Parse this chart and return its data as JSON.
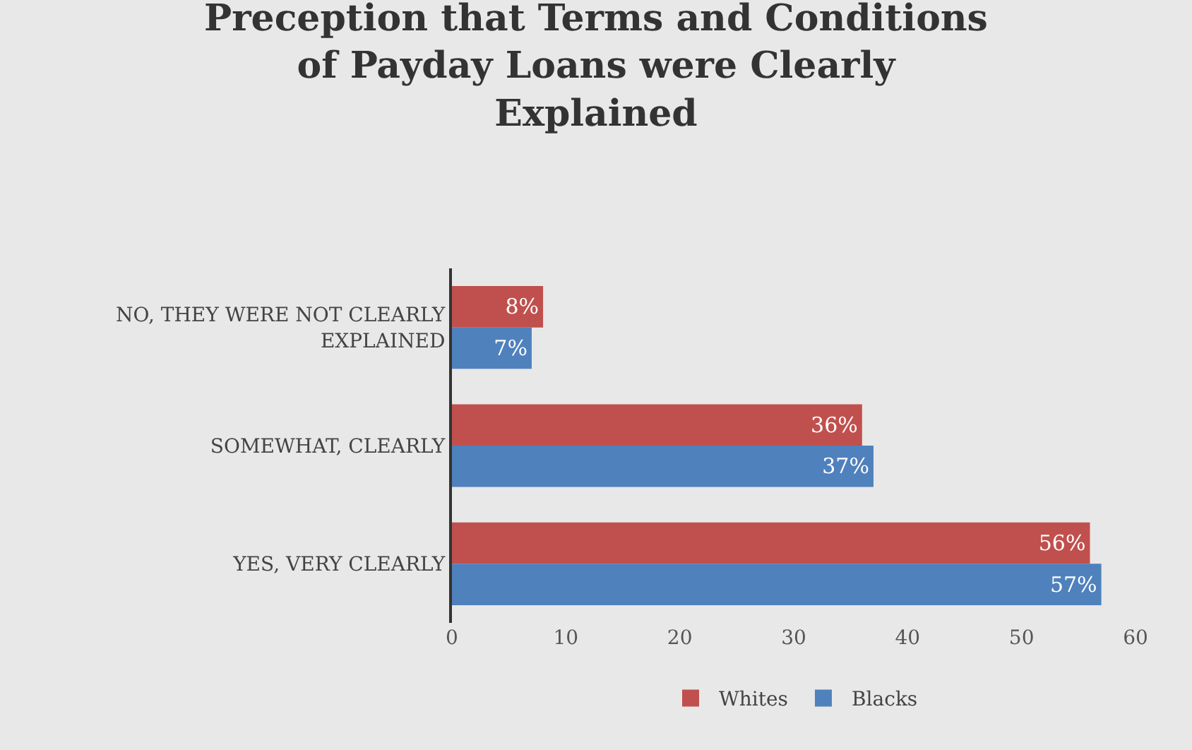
{
  "chart_data": {
    "type": "bar",
    "orientation": "horizontal",
    "title": "Preception that Terms and Conditions of Payday Loans were Clearly Explained",
    "categories": [
      "NO, THEY WERE NOT CLEARLY EXPLAINED",
      "SOMEWHAT, CLEARLY",
      "YES, VERY CLEARLY"
    ],
    "series": [
      {
        "name": "Whites",
        "color": "#c0504d",
        "values": [
          8,
          36,
          56
        ],
        "value_labels": [
          "8%",
          "36%",
          "56%"
        ]
      },
      {
        "name": "Blacks",
        "color": "#4f81bd",
        "values": [
          7,
          37,
          57
        ],
        "value_labels": [
          "7%",
          "37%",
          "57%"
        ]
      }
    ],
    "xlim": [
      0,
      60
    ],
    "xticks": [
      0,
      10,
      20,
      30,
      40,
      50,
      60
    ],
    "grid": false,
    "legend": "bottom"
  }
}
